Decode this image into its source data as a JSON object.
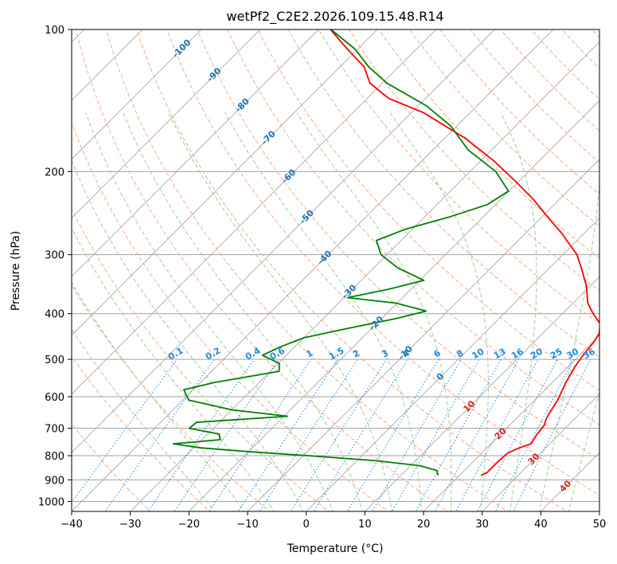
{
  "chart_data": {
    "type": "line",
    "title": "wetPf2_C2E2.2026.109.15.48.R14",
    "xlabel": "Temperature (°C)",
    "ylabel": "Pressure (hPa)",
    "xlim": [
      -40,
      50
    ],
    "ylim_hpa": [
      1050,
      100
    ],
    "y_scale": "log",
    "skew_degrees": 45,
    "grid": true,
    "x_ticks": [
      -40,
      -30,
      -20,
      -10,
      0,
      10,
      20,
      30,
      40,
      50
    ],
    "x_tick_labels": [
      "−40",
      "−30",
      "−20",
      "−10",
      "0",
      "10",
      "20",
      "30",
      "40",
      "50"
    ],
    "y_ticks": [
      100,
      200,
      300,
      400,
      500,
      600,
      700,
      800,
      900,
      1000
    ],
    "y_tick_labels": [
      "100",
      "200",
      "300",
      "400",
      "500",
      "600",
      "700",
      "800",
      "900",
      "1000"
    ],
    "series": [
      {
        "color": "#ff0000",
        "points": [
          {
            "p": 880,
            "t": 23.6
          },
          {
            "p": 870,
            "t": 24.2
          },
          {
            "p": 850,
            "t": 24.2
          },
          {
            "p": 820,
            "t": 24.2
          },
          {
            "p": 790,
            "t": 24.4
          },
          {
            "p": 770,
            "t": 25.5
          },
          {
            "p": 755,
            "t": 26.8
          },
          {
            "p": 720,
            "t": 26.2
          },
          {
            "p": 690,
            "t": 25.9
          },
          {
            "p": 670,
            "t": 25.2
          },
          {
            "p": 650,
            "t": 24.7
          },
          {
            "p": 610,
            "t": 23.9
          },
          {
            "p": 560,
            "t": 22.3
          },
          {
            "p": 520,
            "t": 21.2
          },
          {
            "p": 490,
            "t": 20.6
          },
          {
            "p": 460,
            "t": 20.2
          },
          {
            "p": 440,
            "t": 19.6
          },
          {
            "p": 420,
            "t": 18.1
          },
          {
            "p": 400,
            "t": 15.2
          },
          {
            "p": 380,
            "t": 12.5
          },
          {
            "p": 350,
            "t": 9.4
          },
          {
            "p": 320,
            "t": 5.4
          },
          {
            "p": 300,
            "t": 2.4
          },
          {
            "p": 270,
            "t": -3.9
          },
          {
            "p": 250,
            "t": -8.9
          },
          {
            "p": 230,
            "t": -14.2
          },
          {
            "p": 210,
            "t": -20.5
          },
          {
            "p": 190,
            "t": -27.7
          },
          {
            "p": 170,
            "t": -36.5
          },
          {
            "p": 150,
            "t": -48.0
          },
          {
            "p": 140,
            "t": -56.3
          },
          {
            "p": 130,
            "t": -62.1
          },
          {
            "p": 120,
            "t": -65.9
          },
          {
            "p": 110,
            "t": -71.8
          },
          {
            "p": 100,
            "t": -78.0
          }
        ]
      },
      {
        "color": "#008000",
        "points": [
          {
            "p": 880,
            "t": 16.3
          },
          {
            "p": 860,
            "t": 15.3
          },
          {
            "p": 840,
            "t": 11.6
          },
          {
            "p": 820,
            "t": 3.3
          },
          {
            "p": 800,
            "t": -9.2
          },
          {
            "p": 785,
            "t": -19.6
          },
          {
            "p": 770,
            "t": -28.8
          },
          {
            "p": 755,
            "t": -34.2
          },
          {
            "p": 740,
            "t": -26.9
          },
          {
            "p": 720,
            "t": -28.0
          },
          {
            "p": 700,
            "t": -34.1
          },
          {
            "p": 680,
            "t": -33.9
          },
          {
            "p": 660,
            "t": -19.4
          },
          {
            "p": 640,
            "t": -29.9
          },
          {
            "p": 610,
            "t": -39.0
          },
          {
            "p": 580,
            "t": -41.6
          },
          {
            "p": 560,
            "t": -37.7
          },
          {
            "p": 530,
            "t": -28.5
          },
          {
            "p": 510,
            "t": -29.8
          },
          {
            "p": 490,
            "t": -34.1
          },
          {
            "p": 470,
            "t": -32.4
          },
          {
            "p": 450,
            "t": -30.0
          },
          {
            "p": 430,
            "t": -24.1
          },
          {
            "p": 410,
            "t": -17.6
          },
          {
            "p": 395,
            "t": -13.7
          },
          {
            "p": 380,
            "t": -20.2
          },
          {
            "p": 370,
            "t": -29.4
          },
          {
            "p": 355,
            "t": -23.8
          },
          {
            "p": 340,
            "t": -19.3
          },
          {
            "p": 320,
            "t": -25.9
          },
          {
            "p": 300,
            "t": -31.0
          },
          {
            "p": 280,
            "t": -34.2
          },
          {
            "p": 265,
            "t": -31.2
          },
          {
            "p": 250,
            "t": -25.9
          },
          {
            "p": 235,
            "t": -21.4
          },
          {
            "p": 220,
            "t": -20.1
          },
          {
            "p": 200,
            "t": -25.6
          },
          {
            "p": 180,
            "t": -34.0
          },
          {
            "p": 160,
            "t": -41.1
          },
          {
            "p": 145,
            "t": -48.7
          },
          {
            "p": 130,
            "t": -59.2
          },
          {
            "p": 120,
            "t": -65.1
          },
          {
            "p": 110,
            "t": -70.5
          },
          {
            "p": 100,
            "t": -77.9
          }
        ]
      }
    ],
    "dry_adiabat_labels": [
      {
        "text": "-100",
        "t": -100,
        "p": 110
      },
      {
        "text": "-90",
        "t": -90,
        "p": 125
      },
      {
        "text": "-80",
        "t": -80,
        "p": 145
      },
      {
        "text": "-70",
        "t": -70,
        "p": 170
      },
      {
        "text": "-60",
        "t": -60,
        "p": 205
      },
      {
        "text": "-50",
        "t": -50,
        "p": 250
      },
      {
        "text": "-40",
        "t": -40,
        "p": 305
      },
      {
        "text": "-30",
        "t": -30,
        "p": 360
      },
      {
        "text": "-20",
        "t": -20,
        "p": 420
      },
      {
        "text": "-10",
        "t": -10,
        "p": 485
      },
      {
        "text": "0",
        "t": 0,
        "p": 545
      },
      {
        "text": "10",
        "t": 10,
        "p": 630
      },
      {
        "text": "20",
        "t": 20,
        "p": 720
      },
      {
        "text": "30",
        "t": 30,
        "p": 815
      },
      {
        "text": "40",
        "t": 40,
        "p": 930
      }
    ],
    "mixing_ratio_labels": [
      "0.1",
      "0.2",
      "0.4",
      "0.6",
      "1",
      "1.5",
      "2",
      "3",
      "4",
      "6",
      "8",
      "10",
      "13",
      "16",
      "20",
      "25",
      "30",
      "36"
    ],
    "mixing_ratio_values": [
      0.1,
      0.2,
      0.4,
      0.6,
      1,
      1.5,
      2,
      3,
      4,
      6,
      8,
      10,
      13,
      16,
      20,
      25,
      30,
      36
    ],
    "colors": {
      "temperature": "#ff0000",
      "dewpoint": "#008000",
      "dry_adiabat": "#f7a98b",
      "moist_adiabat": "#9ccf9c",
      "mixing_ratio": "#1e88e5",
      "isotherm": "#a0a0a0",
      "dry_label_warm": "#d62728",
      "dry_label_cold": "#1f77b4"
    }
  }
}
